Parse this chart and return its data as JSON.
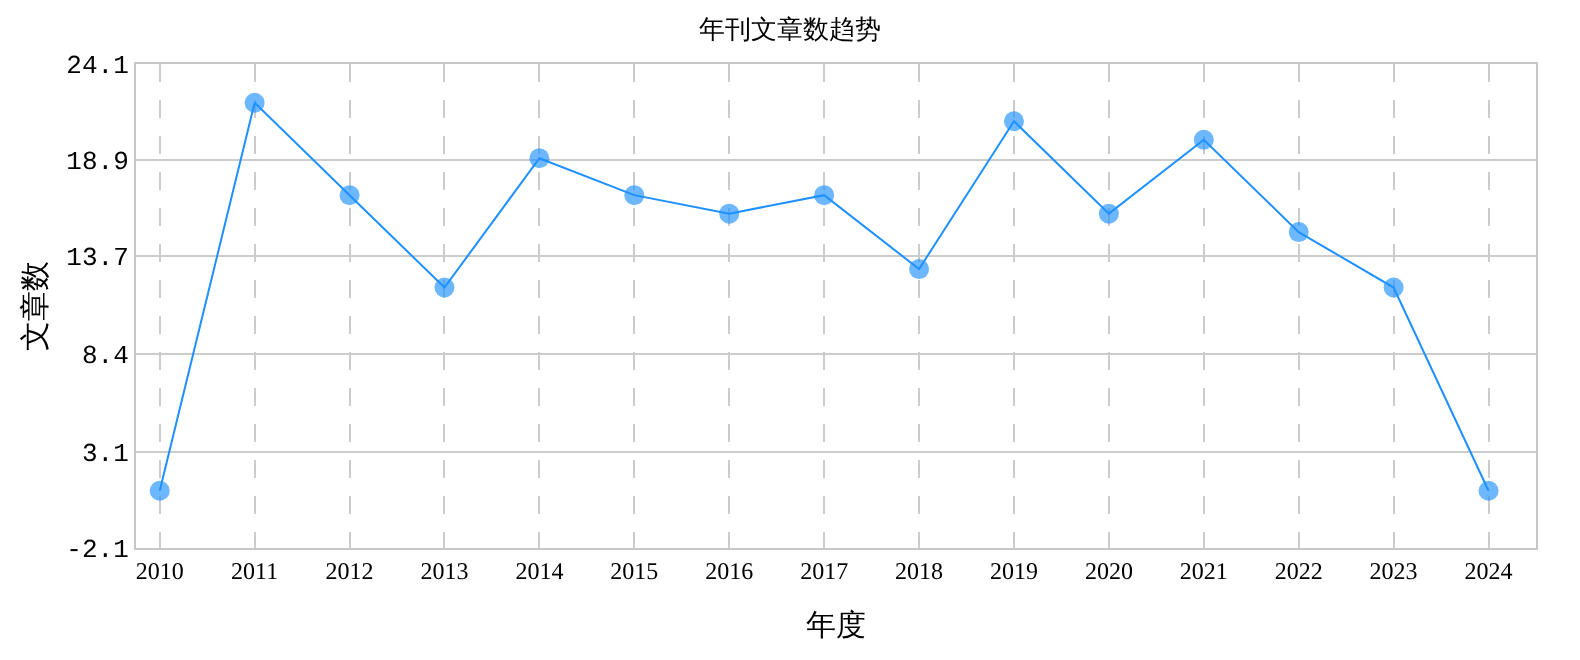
{
  "chart_data": {
    "type": "line",
    "title": "年刊文章数趋势",
    "xlabel": "年度",
    "ylabel": "文章数",
    "categories": [
      "2010",
      "2011",
      "2012",
      "2013",
      "2014",
      "2015",
      "2016",
      "2017",
      "2018",
      "2019",
      "2020",
      "2021",
      "2022",
      "2023",
      "2024"
    ],
    "series": [
      {
        "color": "#1e90ff",
        "values": [
          1,
          22,
          17,
          12,
          19,
          17,
          16,
          17,
          13,
          21,
          16,
          20,
          15,
          12,
          1
        ]
      }
    ],
    "ylim": [
      -2.1,
      24.1
    ],
    "yticks": [
      -2.1,
      3.1,
      8.4,
      13.7,
      18.9,
      24.1
    ],
    "grid": true,
    "marker": "circle",
    "line_style": "solid",
    "legend": false
  }
}
